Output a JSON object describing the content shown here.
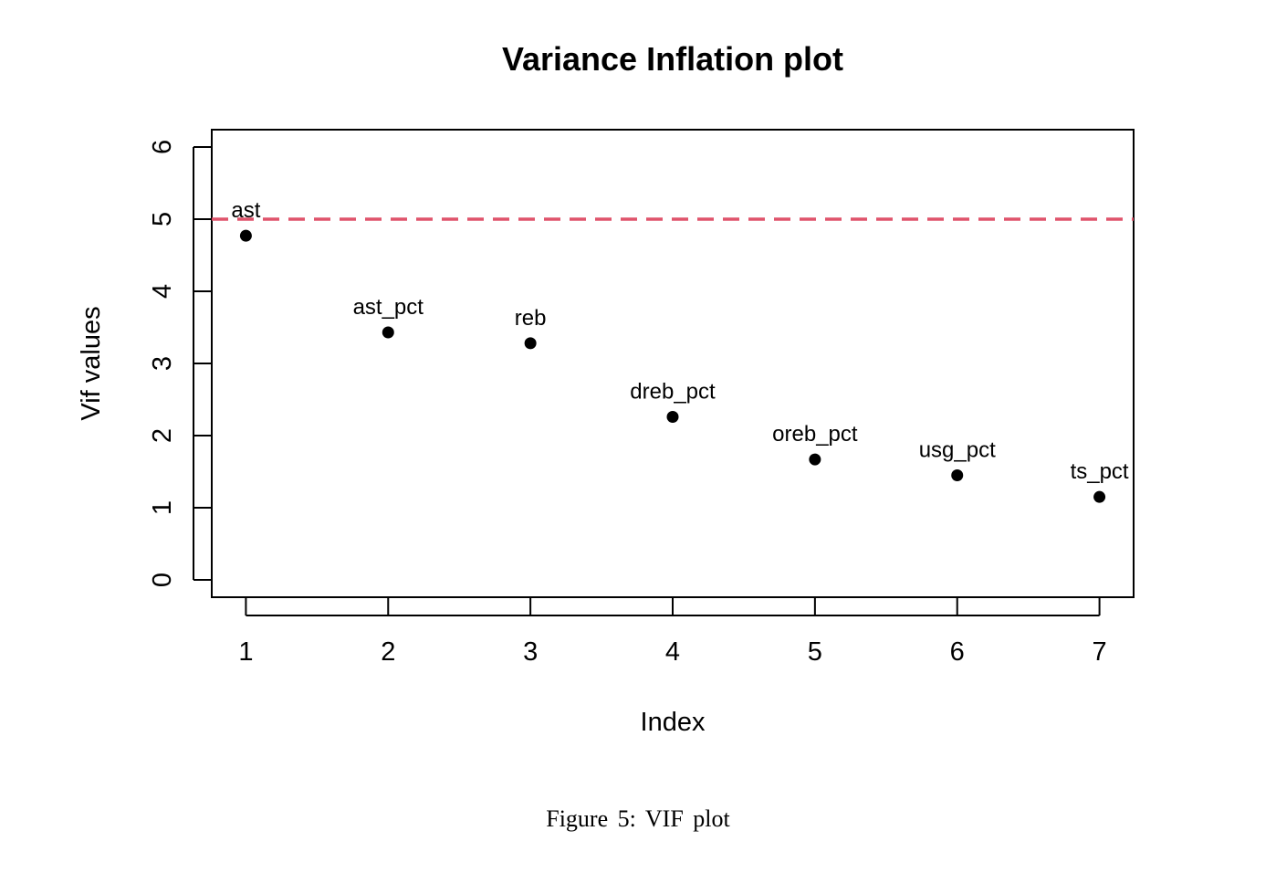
{
  "chart_data": {
    "type": "scatter",
    "title": "Variance Inflation plot",
    "xlabel": "Index",
    "ylabel": "Vif values",
    "x": [
      1,
      2,
      3,
      4,
      5,
      6,
      7
    ],
    "y": [
      4.77,
      3.43,
      3.28,
      2.26,
      1.67,
      1.45,
      1.15
    ],
    "point_labels": [
      "ast",
      "ast_pct",
      "reb",
      "dreb_pct",
      "oreb_pct",
      "usg_pct",
      "ts_pct"
    ],
    "xlim": [
      0.76,
      7.24
    ],
    "ylim": [
      -0.24,
      6.24
    ],
    "x_ticks": [
      1,
      2,
      3,
      4,
      5,
      6,
      7
    ],
    "y_ticks": [
      0,
      1,
      2,
      3,
      4,
      5,
      6
    ],
    "reference_line": {
      "y": 5,
      "style": "dashed",
      "color": "#DF536B"
    },
    "point_color": "#000000",
    "grid": false
  },
  "caption": "Figure 5: VIF plot"
}
